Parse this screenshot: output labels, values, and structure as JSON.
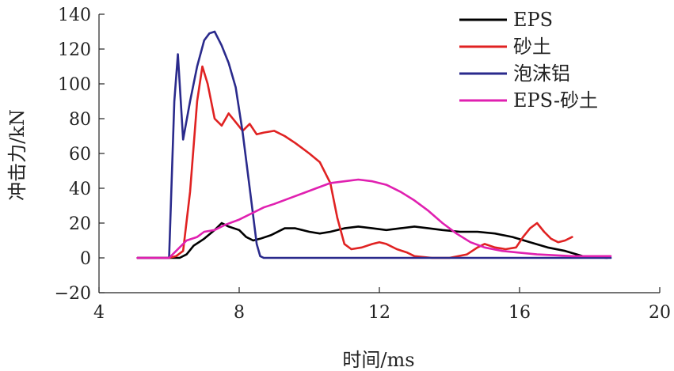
{
  "chart_data": {
    "type": "line",
    "title": "",
    "xlabel": "时间/ms",
    "ylabel": "冲击力/kN",
    "xlim": [
      4,
      20
    ],
    "ylim": [
      -20,
      140
    ],
    "xticks": [
      4,
      8,
      12,
      16,
      20
    ],
    "yticks": [
      -20,
      0,
      20,
      40,
      60,
      80,
      100,
      120,
      140
    ],
    "grid": false,
    "legend_position": "top-right",
    "series": [
      {
        "name": "EPS",
        "color": "#000000",
        "points": [
          [
            5.1,
            0
          ],
          [
            6.0,
            0
          ],
          [
            6.3,
            0
          ],
          [
            6.5,
            2
          ],
          [
            6.7,
            7
          ],
          [
            7.0,
            11
          ],
          [
            7.3,
            16
          ],
          [
            7.5,
            20
          ],
          [
            7.7,
            18
          ],
          [
            8.0,
            16
          ],
          [
            8.2,
            12
          ],
          [
            8.4,
            10
          ],
          [
            8.6,
            11
          ],
          [
            8.9,
            13
          ],
          [
            9.3,
            17
          ],
          [
            9.6,
            17
          ],
          [
            10.0,
            15
          ],
          [
            10.3,
            14
          ],
          [
            10.6,
            15
          ],
          [
            11.0,
            17
          ],
          [
            11.4,
            18
          ],
          [
            11.8,
            17
          ],
          [
            12.2,
            16
          ],
          [
            12.6,
            17
          ],
          [
            13.0,
            18
          ],
          [
            13.4,
            17
          ],
          [
            13.8,
            16
          ],
          [
            14.3,
            15
          ],
          [
            14.8,
            15
          ],
          [
            15.3,
            14
          ],
          [
            15.8,
            12
          ],
          [
            16.3,
            9
          ],
          [
            16.8,
            6
          ],
          [
            17.3,
            4
          ],
          [
            17.8,
            1
          ],
          [
            18.5,
            0
          ]
        ]
      },
      {
        "name": "砂土",
        "color": "#e02222",
        "points": [
          [
            5.1,
            0
          ],
          [
            6.0,
            0
          ],
          [
            6.2,
            1
          ],
          [
            6.4,
            4
          ],
          [
            6.6,
            38
          ],
          [
            6.8,
            90
          ],
          [
            6.95,
            110
          ],
          [
            7.1,
            100
          ],
          [
            7.3,
            80
          ],
          [
            7.5,
            76
          ],
          [
            7.7,
            83
          ],
          [
            7.9,
            78
          ],
          [
            8.1,
            73
          ],
          [
            8.3,
            77
          ],
          [
            8.5,
            71
          ],
          [
            8.7,
            72
          ],
          [
            9.0,
            73
          ],
          [
            9.3,
            70
          ],
          [
            9.6,
            66
          ],
          [
            10.0,
            60
          ],
          [
            10.3,
            55
          ],
          [
            10.6,
            43
          ],
          [
            10.8,
            23
          ],
          [
            11.0,
            8
          ],
          [
            11.2,
            5
          ],
          [
            11.5,
            6
          ],
          [
            11.8,
            8
          ],
          [
            12.0,
            9
          ],
          [
            12.2,
            8
          ],
          [
            12.5,
            5
          ],
          [
            12.8,
            3
          ],
          [
            13.0,
            1
          ],
          [
            13.5,
            0
          ],
          [
            14.0,
            0
          ],
          [
            14.5,
            2
          ],
          [
            14.8,
            6
          ],
          [
            15.0,
            8
          ],
          [
            15.3,
            6
          ],
          [
            15.6,
            5
          ],
          [
            15.9,
            6
          ],
          [
            16.1,
            12
          ],
          [
            16.3,
            17
          ],
          [
            16.5,
            20
          ],
          [
            16.7,
            15
          ],
          [
            16.9,
            11
          ],
          [
            17.1,
            9
          ],
          [
            17.3,
            10
          ],
          [
            17.5,
            12
          ]
        ]
      },
      {
        "name": "泡沫铝",
        "color": "#2a2a8c",
        "points": [
          [
            5.1,
            0
          ],
          [
            6.0,
            0
          ],
          [
            6.15,
            90
          ],
          [
            6.25,
            117
          ],
          [
            6.4,
            68
          ],
          [
            6.6,
            90
          ],
          [
            6.8,
            110
          ],
          [
            7.0,
            125
          ],
          [
            7.15,
            129
          ],
          [
            7.3,
            130
          ],
          [
            7.5,
            122
          ],
          [
            7.7,
            112
          ],
          [
            7.9,
            98
          ],
          [
            8.1,
            72
          ],
          [
            8.3,
            40
          ],
          [
            8.5,
            8
          ],
          [
            8.6,
            1
          ],
          [
            8.7,
            0
          ],
          [
            12.0,
            0
          ],
          [
            16.0,
            0
          ],
          [
            18.6,
            0
          ]
        ]
      },
      {
        "name": "EPS-砂土",
        "color": "#e020b0",
        "points": [
          [
            5.1,
            0
          ],
          [
            6.0,
            0
          ],
          [
            6.2,
            4
          ],
          [
            6.5,
            10
          ],
          [
            6.8,
            12
          ],
          [
            7.0,
            15
          ],
          [
            7.3,
            16
          ],
          [
            7.6,
            19
          ],
          [
            8.0,
            22
          ],
          [
            8.3,
            25
          ],
          [
            8.7,
            29
          ],
          [
            9.0,
            31
          ],
          [
            9.4,
            34
          ],
          [
            9.8,
            37
          ],
          [
            10.2,
            40
          ],
          [
            10.6,
            43
          ],
          [
            11.0,
            44
          ],
          [
            11.4,
            45
          ],
          [
            11.8,
            44
          ],
          [
            12.2,
            42
          ],
          [
            12.6,
            38
          ],
          [
            13.0,
            33
          ],
          [
            13.4,
            27
          ],
          [
            13.8,
            20
          ],
          [
            14.2,
            14
          ],
          [
            14.6,
            9
          ],
          [
            15.0,
            6
          ],
          [
            15.5,
            4
          ],
          [
            16.0,
            3
          ],
          [
            16.5,
            2
          ],
          [
            17.0,
            1.5
          ],
          [
            17.5,
            1
          ],
          [
            18.0,
            1
          ],
          [
            18.6,
            1
          ]
        ]
      }
    ]
  }
}
